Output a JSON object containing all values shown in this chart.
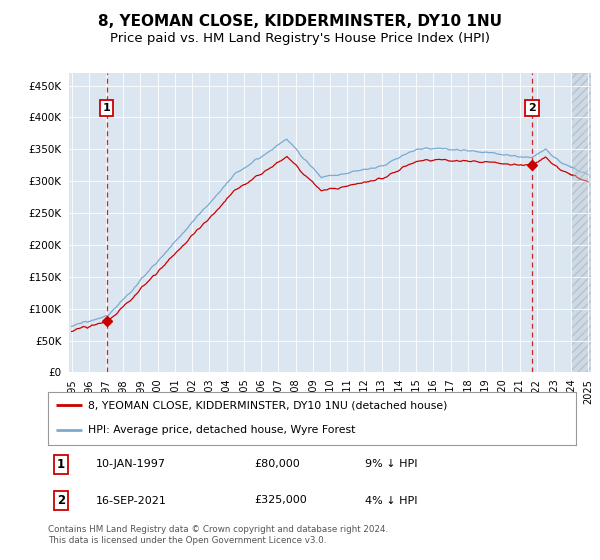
{
  "title": "8, YEOMAN CLOSE, KIDDERMINSTER, DY10 1NU",
  "subtitle": "Price paid vs. HM Land Registry's House Price Index (HPI)",
  "xlim_year_start": 1995,
  "xlim_year_end": 2025,
  "ylim": [
    0,
    470000
  ],
  "yticks": [
    0,
    50000,
    100000,
    150000,
    200000,
    250000,
    300000,
    350000,
    400000,
    450000
  ],
  "ytick_labels": [
    "£0",
    "£50K",
    "£100K",
    "£150K",
    "£200K",
    "£250K",
    "£300K",
    "£350K",
    "£400K",
    "£450K"
  ],
  "sale1_year": 1997.04,
  "sale1_price": 80000,
  "sale2_year": 2021.72,
  "sale2_price": 325000,
  "hpi_line_color": "#7aaad0",
  "sale_line_color": "#cc0000",
  "plot_bg_color": "#dce6f0",
  "grid_color": "#ffffff",
  "hatch_start": 2024.0,
  "legend_label_sale": "8, YEOMAN CLOSE, KIDDERMINSTER, DY10 1NU (detached house)",
  "legend_label_hpi": "HPI: Average price, detached house, Wyre Forest",
  "footer_text": "Contains HM Land Registry data © Crown copyright and database right 2024.\nThis data is licensed under the Open Government Licence v3.0.",
  "title_fontsize": 11,
  "subtitle_fontsize": 9.5
}
